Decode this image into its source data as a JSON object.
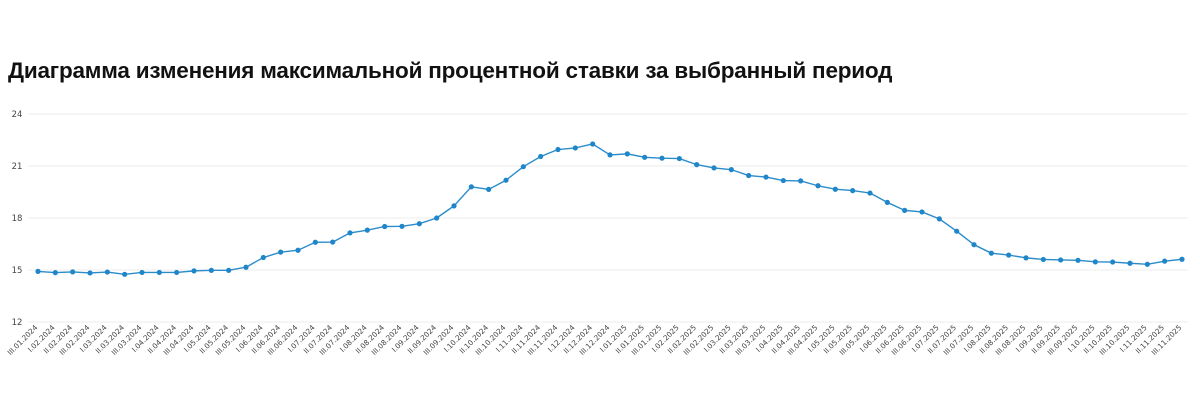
{
  "chart_data": {
    "type": "line",
    "title": "Диаграмма изменения максимальной процентной ставки за выбранный период",
    "xlabel": "",
    "ylabel": "",
    "ylim": [
      12,
      24
    ],
    "yticks": [
      12,
      15,
      18,
      21,
      24
    ],
    "grid": true,
    "legend": "none",
    "colors": {
      "line": "#2b8ccc",
      "point": "#1f86c9",
      "grid": "#eeeeee",
      "text": "#444444"
    },
    "categories": [
      "III.01.2024",
      "I.02.2024",
      "II.02.2024",
      "III.02.2024",
      "I.03.2024",
      "II.03.2024",
      "III.03.2024",
      "I.04.2024",
      "II.04.2024",
      "III.04.2024",
      "I.05.2024",
      "II.05.2024",
      "III.05.2024",
      "I.06.2024",
      "II.06.2024",
      "III.06.2024",
      "I.07.2024",
      "II.07.2024",
      "III.07.2024",
      "I.08.2024",
      "II.08.2024",
      "III.08.2024",
      "I.09.2024",
      "II.09.2024",
      "III.09.2024",
      "I.10.2024",
      "II.10.2024",
      "III.10.2024",
      "I.11.2024",
      "II.11.2024",
      "III.11.2024",
      "I.12.2024",
      "II.12.2024",
      "III.12.2024",
      "I.01.2025",
      "II.01.2025",
      "III.01.2025",
      "I.02.2025",
      "II.02.2025",
      "III.02.2025",
      "I.03.2025",
      "II.03.2025",
      "III.03.2025",
      "I.04.2025",
      "II.04.2025",
      "III.04.2025",
      "I.05.2025",
      "II.05.2025",
      "III.05.2025",
      "I.06.2025",
      "II.06.2025",
      "III.06.2025",
      "I.07.2025",
      "II.07.2025",
      "III.07.2025",
      "I.08.2025",
      "II.08.2025",
      "III.08.2025",
      "I.09.2025",
      "II.09.2025",
      "III.09.2025",
      "I.10.2025",
      "II.10.2025",
      "III.10.2025",
      "I.11.2025",
      "II.11.2025",
      "III.11.2025"
    ],
    "values": [
      14.92,
      14.85,
      14.89,
      14.83,
      14.88,
      14.75,
      14.86,
      14.86,
      14.86,
      14.95,
      14.98,
      14.98,
      15.16,
      15.72,
      16.03,
      16.14,
      16.6,
      16.61,
      17.14,
      17.3,
      17.51,
      17.52,
      17.67,
      18.0,
      18.7,
      19.8,
      19.65,
      20.18,
      20.96,
      21.55,
      21.95,
      22.04,
      22.27,
      21.64,
      21.7,
      21.5,
      21.45,
      21.43,
      21.08,
      20.89,
      20.79,
      20.45,
      20.36,
      20.16,
      20.14,
      19.86,
      19.66,
      19.58,
      19.44,
      18.9,
      18.44,
      18.35,
      17.95,
      17.24,
      16.46,
      15.97,
      15.86,
      15.7,
      15.61,
      15.58,
      15.56,
      15.47,
      15.46,
      15.39,
      15.33,
      15.51,
      15.62
    ]
  }
}
